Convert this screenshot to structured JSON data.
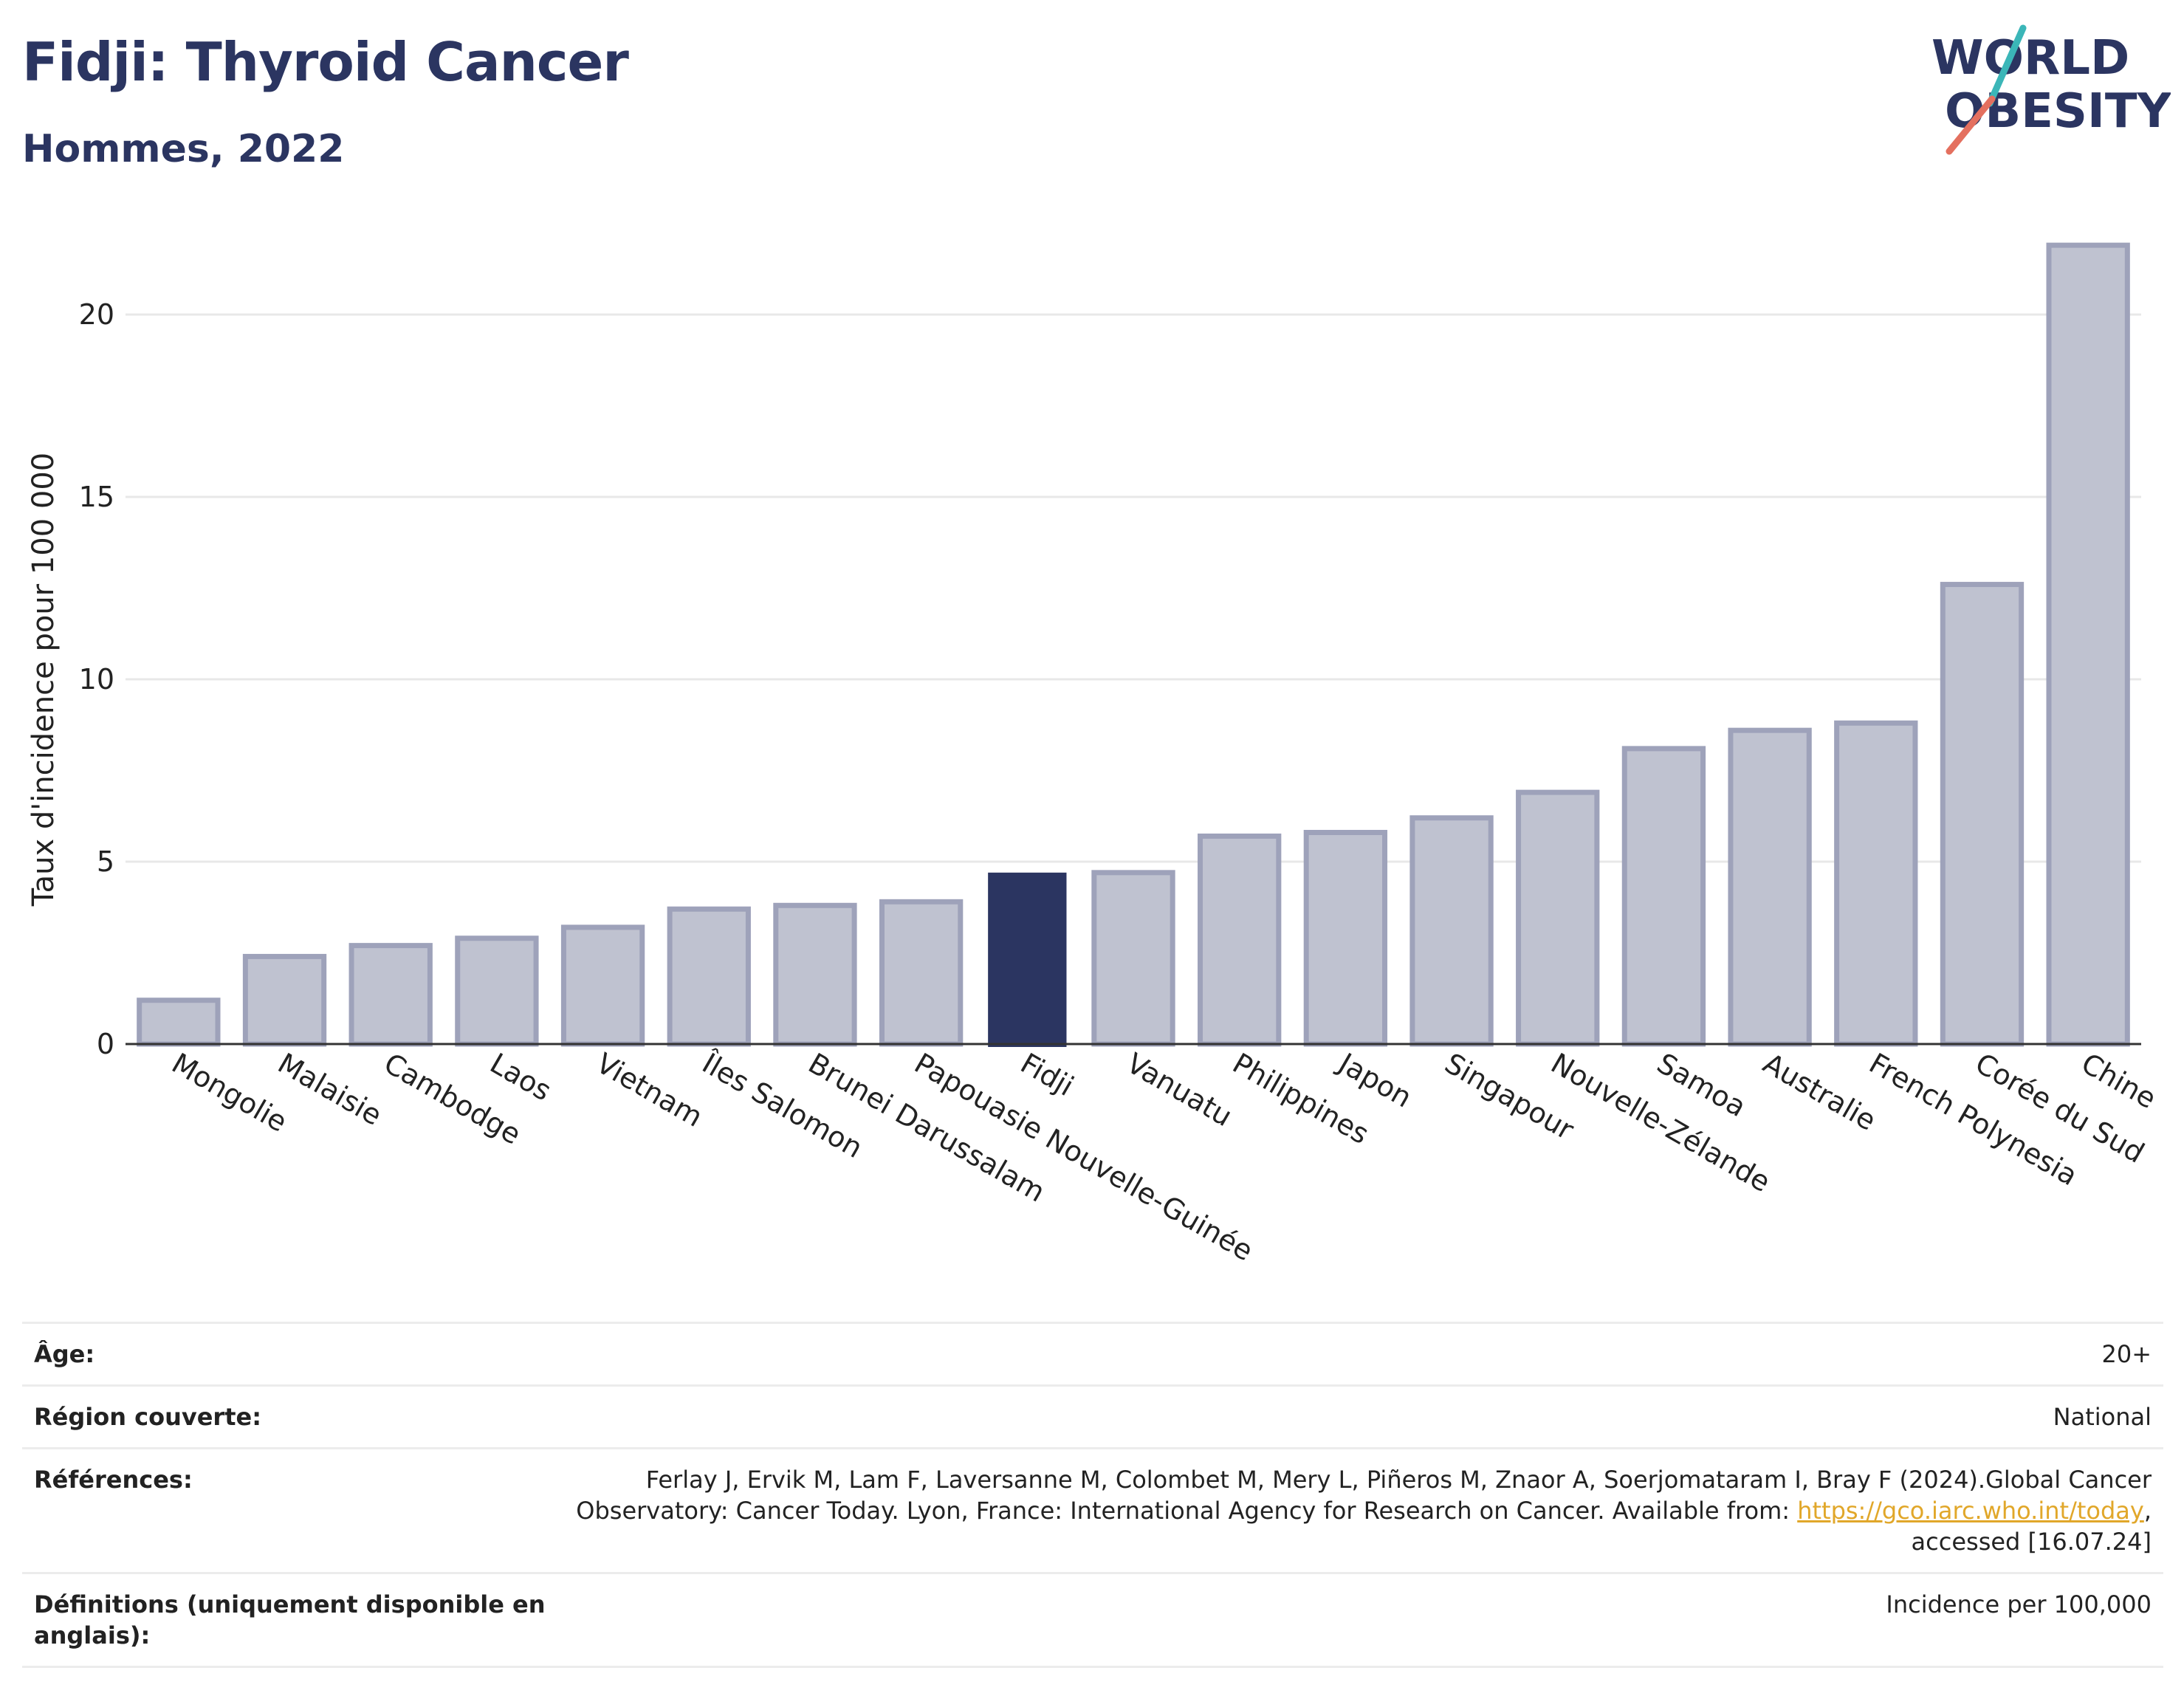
{
  "header": {
    "title": "Fidji: Thyroid Cancer",
    "subtitle": "Hommes, 2022"
  },
  "logo": {
    "line1": "WORLD",
    "line2": "OBESITY",
    "colors": {
      "text": "#2b3561",
      "slash_teal": "#3bb6b8",
      "slash_coral": "#e4705f"
    }
  },
  "chart_data": {
    "type": "bar",
    "ylabel": "Taux d'incidence pour 100 000",
    "xlabel": "",
    "ylim": [
      0,
      23
    ],
    "yticks": [
      0,
      5,
      10,
      15,
      20
    ],
    "grid": true,
    "highlight": "Fidji",
    "colors": {
      "bar": "#bfc2d0",
      "bar_edge": "#9ea2ba",
      "highlight": "#2b3561"
    },
    "categories": [
      "Mongolie",
      "Malaisie",
      "Cambodge",
      "Laos",
      "Vietnam",
      "Îles Salomon",
      "Brunei Darussalam",
      "Papouasie Nouvelle-Guinée",
      "Fidji",
      "Vanuatu",
      "Philippines",
      "Japon",
      "Singapour",
      "Nouvelle-Zélande",
      "Samoa",
      "Australie",
      "French Polynesia",
      "Corée du Sud",
      "Chine"
    ],
    "values": [
      1.2,
      2.4,
      2.7,
      2.9,
      3.2,
      3.7,
      3.8,
      3.9,
      4.7,
      4.7,
      5.7,
      5.8,
      6.2,
      6.9,
      8.1,
      8.6,
      8.8,
      12.6,
      21.9
    ]
  },
  "meta": {
    "age_label": "Âge:",
    "age_value": "20+",
    "region_label": "Région couverte:",
    "region_value": "National",
    "ref_label": "Références:",
    "ref_text_1": "Ferlay J, Ervik M, Lam F, Laversanne M, Colombet M, Mery L, Piñeros M, Znaor A, Soerjomataram I, Bray F (2024).Global Cancer Observatory: Cancer Today. Lyon, France: International Agency for Research on Cancer. Available from: ",
    "ref_link": "https://gco.iarc.who.int/today",
    "ref_text_2": ", accessed [16.07.24]",
    "def_label": "Définitions (uniquement disponible en anglais):",
    "def_value": "Incidence per 100,000"
  }
}
